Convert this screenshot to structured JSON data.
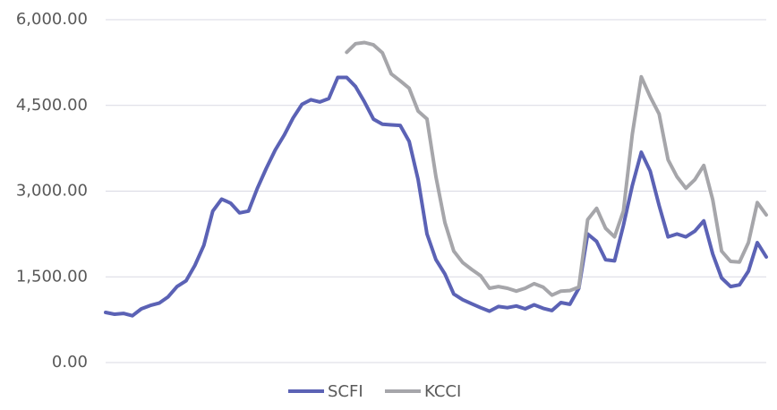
{
  "chart_data": {
    "type": "line",
    "series": [
      {
        "name": "SCFI",
        "color": "#5b62b5",
        "values": [
          877,
          846,
          860,
          820,
          940,
          1000,
          1040,
          1150,
          1330,
          1430,
          1700,
          2050,
          2650,
          2860,
          2790,
          2620,
          2650,
          3050,
          3400,
          3720,
          3980,
          4280,
          4520,
          4600,
          4560,
          4620,
          4990,
          4990,
          4830,
          4560,
          4260,
          4170,
          4160,
          4150,
          3870,
          3200,
          2250,
          1800,
          1550,
          1200,
          1100,
          1030,
          960,
          900,
          980,
          960,
          990,
          940,
          1010,
          950,
          910,
          1050,
          1020,
          1300,
          2250,
          2120,
          1800,
          1780,
          2400,
          3100,
          3680,
          3350,
          2750,
          2200,
          2250,
          2200,
          2300,
          2480,
          1900,
          1480,
          1330,
          1360,
          1600,
          2100,
          1849
        ]
      },
      {
        "name": "KCCI",
        "color": "#a6a6aa",
        "values": [
          null,
          null,
          null,
          null,
          null,
          null,
          null,
          null,
          null,
          null,
          null,
          null,
          null,
          null,
          null,
          null,
          null,
          null,
          null,
          null,
          null,
          null,
          null,
          null,
          null,
          null,
          null,
          5430,
          5580,
          5600,
          5560,
          5420,
          5050,
          4930,
          4800,
          4400,
          4262,
          3250,
          2450,
          1950,
          1750,
          1630,
          1520,
          1300,
          1330,
          1300,
          1250,
          1300,
          1380,
          1320,
          1180,
          1250,
          1260,
          1320,
          2500,
          2700,
          2350,
          2200,
          2650,
          4000,
          5000,
          4650,
          4350,
          3550,
          3250,
          3050,
          3200,
          3450,
          2850,
          1950,
          1770,
          1760,
          2100,
          2800,
          2585
        ]
      }
    ],
    "ylim": [
      0,
      6000
    ],
    "yticks": [
      {
        "value": 0,
        "label": "0.00"
      },
      {
        "value": 1500,
        "label": "1,500.00"
      },
      {
        "value": 3000,
        "label": "3,000.00"
      },
      {
        "value": 4500,
        "label": "4,500.00"
      },
      {
        "value": 6000,
        "label": "6,000.00"
      }
    ],
    "grid": true
  }
}
